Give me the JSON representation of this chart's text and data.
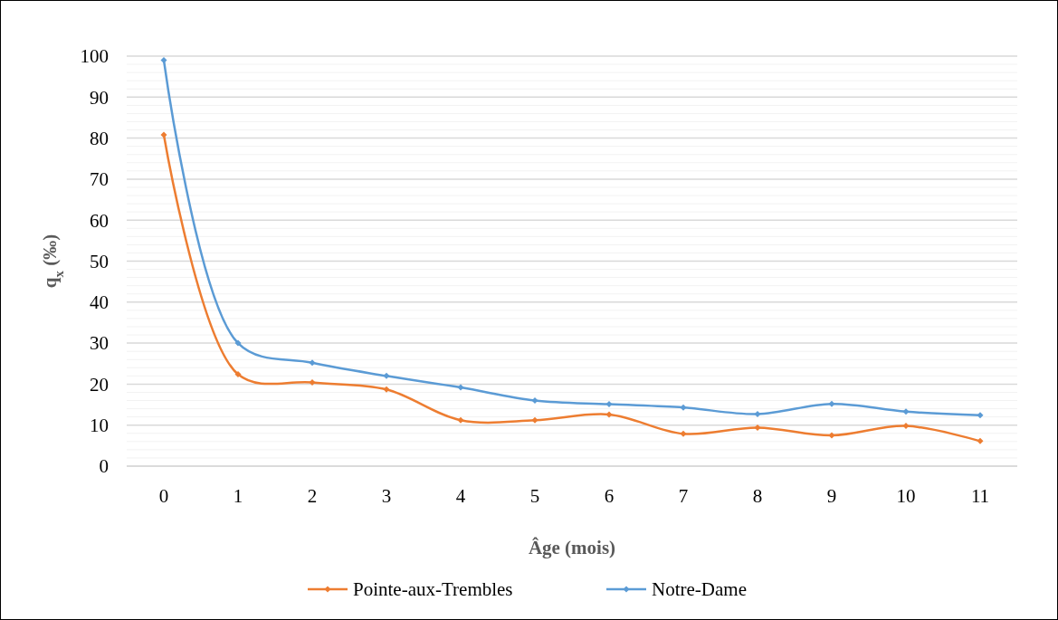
{
  "chart_data": {
    "type": "line",
    "xlabel": "Âge (mois)",
    "ylabel": "q$_{x}$ (‰)",
    "categories": [
      "0",
      "1",
      "2",
      "3",
      "4",
      "5",
      "6",
      "7",
      "8",
      "9",
      "10",
      "11"
    ],
    "series": [
      {
        "name": "Pointe-aux-Trembles",
        "color": "#ed7d31",
        "values": [
          80.8,
          22.4,
          20.4,
          18.7,
          11.2,
          11.2,
          12.6,
          7.9,
          9.4,
          7.5,
          9.8,
          6.1
        ]
      },
      {
        "name": "Notre-Dame",
        "color": "#5b9bd5",
        "values": [
          99,
          30,
          25.2,
          22,
          19.2,
          16,
          15.1,
          14.3,
          12.7,
          15.2,
          13.3,
          12.4
        ]
      }
    ],
    "ylim": [
      0,
      100
    ],
    "yticks": [
      0,
      {
        "value": 2,
        "label": null
      },
      {
        "value": 4,
        "label": null
      },
      {
        "value": 6,
        "label": null
      },
      {
        "value": 8,
        "label": null
      },
      10,
      {
        "value": 12,
        "label": null
      },
      {
        "value": 14,
        "label": null
      },
      {
        "value": 16,
        "label": null
      },
      {
        "value": 18,
        "label": null
      },
      20,
      {
        "value": 22,
        "label": null
      },
      {
        "value": 24,
        "label": null
      },
      {
        "value": 26,
        "label": null
      },
      {
        "value": 28,
        "label": null
      },
      30,
      {
        "value": 32,
        "label": null
      },
      {
        "value": 34,
        "label": null
      },
      {
        "value": 36,
        "label": null
      },
      {
        "value": 38,
        "label": null
      },
      40,
      {
        "value": 42,
        "label": null
      },
      {
        "value": 44,
        "label": null
      },
      {
        "value": 46,
        "label": null
      },
      {
        "value": 48,
        "label": null
      },
      50,
      {
        "value": 52,
        "label": null
      },
      {
        "value": 54,
        "label": null
      },
      {
        "value": 56,
        "label": null
      },
      {
        "value": 58,
        "label": null
      },
      60,
      {
        "value": 62,
        "label": null
      },
      {
        "value": 64,
        "label": null
      },
      {
        "value": 66,
        "label": null
      },
      {
        "value": 68,
        "label": null
      },
      70,
      {
        "value": 72,
        "label": null
      },
      {
        "value": 74,
        "label": null
      },
      {
        "value": 76,
        "label": null
      },
      {
        "value": 78,
        "label": null
      },
      80,
      {
        "value": 82,
        "label": null
      },
      {
        "value": 84,
        "label": null
      },
      {
        "value": 86,
        "label": null
      },
      {
        "value": 88,
        "label": null
      },
      90,
      {
        "value": 92,
        "label": null
      },
      {
        "value": 94,
        "label": null
      },
      {
        "value": 96,
        "label": null
      },
      {
        "value": 98,
        "label": null
      },
      100
    ],
    "grid": "y",
    "legend": "bottom",
    "marker": "diamond",
    "line_style": "solid"
  }
}
